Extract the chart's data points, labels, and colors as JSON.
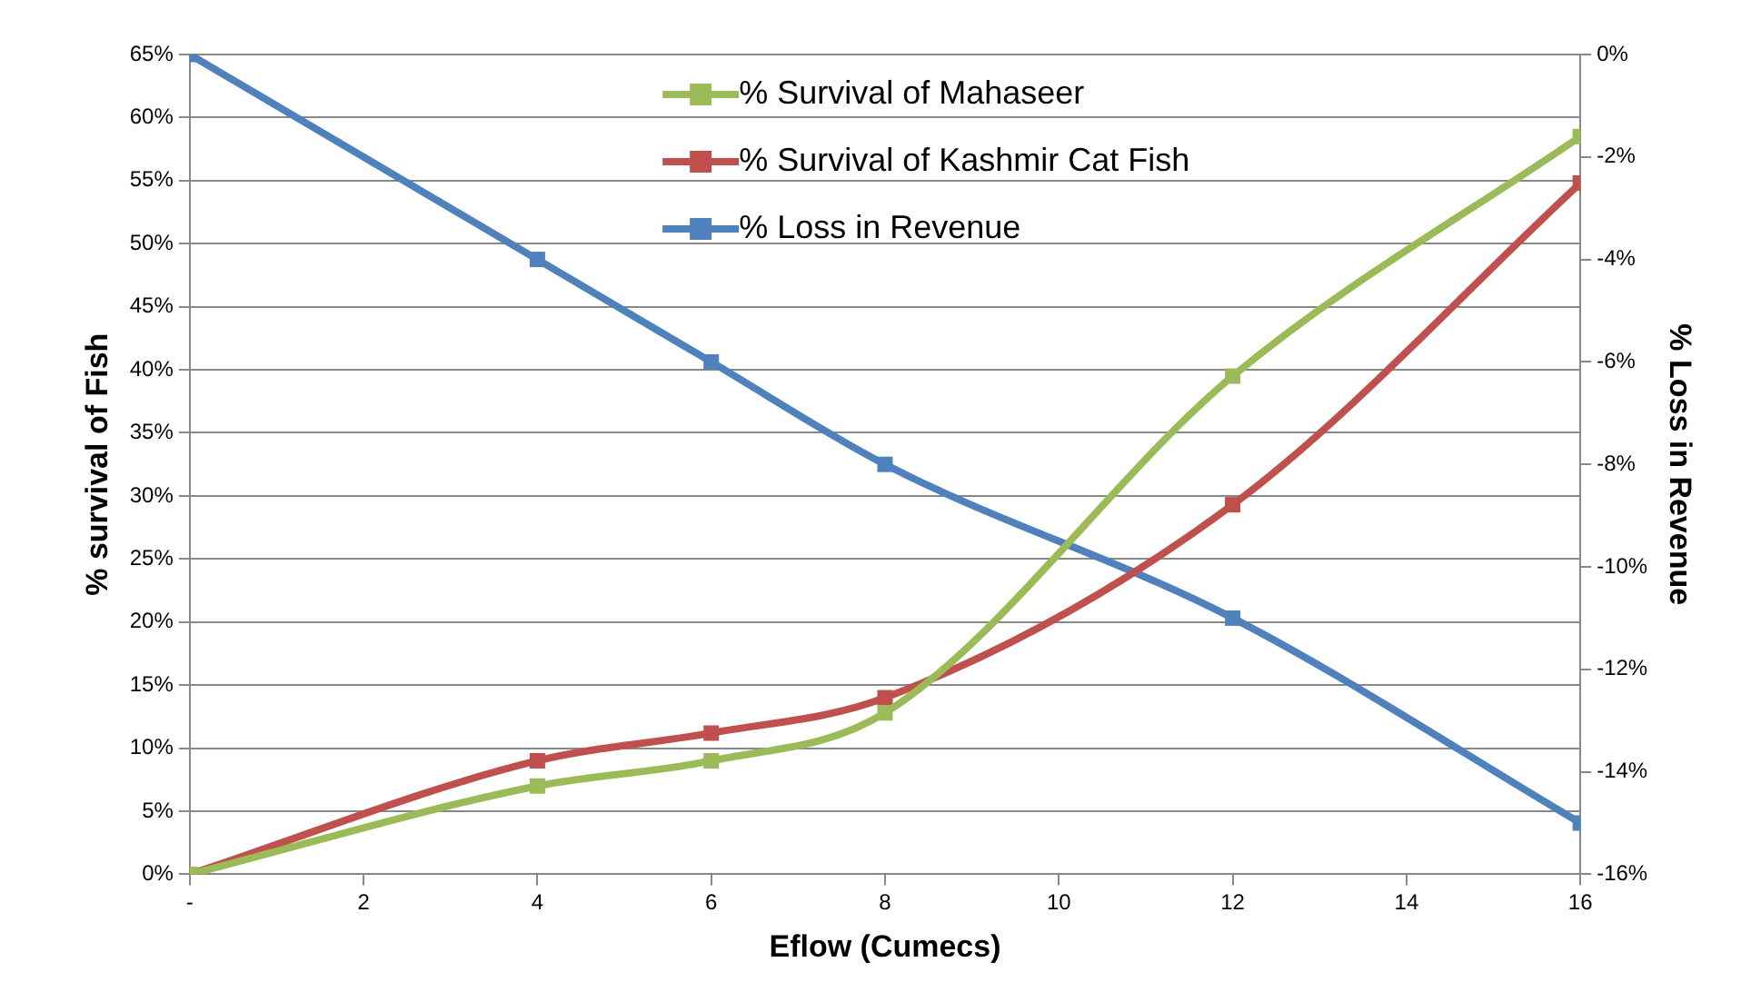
{
  "chart_data": {
    "type": "line",
    "xlabel": "Eflow (Cumecs)",
    "ylabel": "% survival of Fish",
    "y2label": "% Loss in Revenue",
    "x": [
      0,
      4,
      6,
      8,
      12,
      16
    ],
    "xlim": [
      0,
      16
    ],
    "xticks": [
      {
        "value": 0,
        "label": "-"
      },
      2,
      4,
      6,
      8,
      10,
      12,
      14,
      16
    ],
    "ylim": [
      0,
      65
    ],
    "yticks": [
      {
        "value": 0,
        "label": "0%"
      },
      {
        "value": 5,
        "label": "5%"
      },
      {
        "value": 10,
        "label": "10%"
      },
      {
        "value": 15,
        "label": "15%"
      },
      {
        "value": 20,
        "label": "20%"
      },
      {
        "value": 25,
        "label": "25%"
      },
      {
        "value": 30,
        "label": "30%"
      },
      {
        "value": 35,
        "label": "35%"
      },
      {
        "value": 40,
        "label": "40%"
      },
      {
        "value": 45,
        "label": "45%"
      },
      {
        "value": 50,
        "label": "50%"
      },
      {
        "value": 55,
        "label": "55%"
      },
      {
        "value": 60,
        "label": "60%"
      },
      {
        "value": 65,
        "label": "65%"
      }
    ],
    "y2lim": [
      -16,
      0
    ],
    "y2ticks": [
      {
        "value": -16,
        "label": "-16%"
      },
      {
        "value": -14,
        "label": "-14%"
      },
      {
        "value": -12,
        "label": "-12%"
      },
      {
        "value": -10,
        "label": "-10%"
      },
      {
        "value": -8,
        "label": "-8%"
      },
      {
        "value": -6,
        "label": "-6%"
      },
      {
        "value": -4,
        "label": "-4%"
      },
      {
        "value": -2,
        "label": "-2%"
      },
      {
        "value": 0,
        "label": "0%"
      }
    ],
    "series": [
      {
        "name": "% Survival of Mahaseer",
        "color": "#9bbb59",
        "values": [
          0,
          7,
          9,
          12.8,
          39.5,
          58.5
        ]
      },
      {
        "name": "% Survival of Kashmir Cat Fish",
        "color": "#c0504d",
        "values": [
          0,
          9,
          11.2,
          14,
          29.3,
          54.8
        ]
      },
      {
        "name": "% Loss in Revenue",
        "color": "#4f81bd",
        "axis": "y2",
        "values": [
          0,
          -4,
          -6,
          -8,
          -11,
          -15
        ]
      }
    ],
    "grid": "y",
    "legend": "top",
    "marker": "square",
    "line_style": "solid"
  }
}
